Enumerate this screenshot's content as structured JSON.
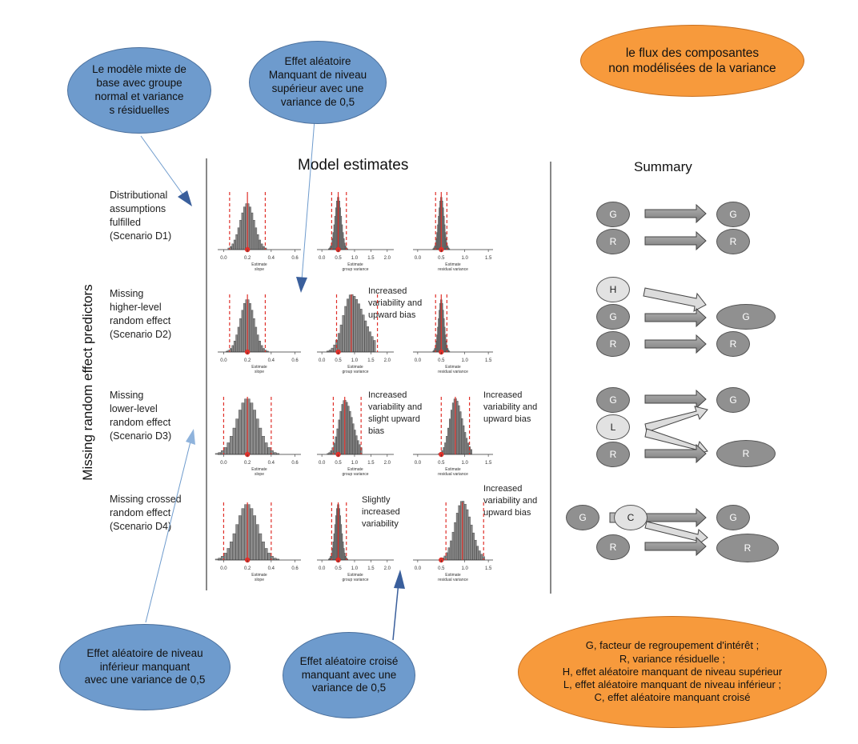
{
  "title": "Model estimates",
  "summary_title": "Summary",
  "side_label": "Missing random effect predictors",
  "rows": [
    {
      "label": "Distributional\nassumptions\nfulfilled\n(Scenario D1)",
      "notes": [
        "",
        "",
        ""
      ]
    },
    {
      "label": "Missing\nhigher-level\nrandom effect\n(Scenario D2)",
      "notes": [
        "",
        "Increased\nvariability and\nupward bias",
        ""
      ]
    },
    {
      "label": "Missing\nlower-level\nrandom effect\n(Scenario D3)",
      "notes": [
        "",
        "Increased\nvariability and\nslight upward\nbias",
        "Increased\nvariability and\nupward bias"
      ]
    },
    {
      "label": "Missing crossed\nrandom effect\n(Scenario D4)",
      "notes": [
        "",
        "Slightly\nincreased\nvariability",
        "Increased\nvariability and\nupward bias"
      ]
    }
  ],
  "axes": [
    {
      "ticks": [
        "0.0",
        "0.2",
        "0.4",
        "0.6"
      ],
      "xlabel": "Estimate\nslope"
    },
    {
      "ticks": [
        "0.0",
        "0.5",
        "1.0",
        "1.5",
        "2.0"
      ],
      "xlabel": "Estimate\ngroup variance"
    },
    {
      "ticks": [
        "0.0",
        "0.5",
        "1.0",
        "1.5"
      ],
      "xlabel": "Estimate\nresidual variance"
    }
  ],
  "callouts": {
    "top_left": "Le modèle mixte de\nbase avec groupe\nnormal et variance\ns résiduelles",
    "top_mid": "Effet aléatoire\nManquant de niveau\nsupérieur avec une\nvariance de 0,5",
    "top_right": "le flux des composantes\nnon modélisées de la variance",
    "bottom_left": "Effet aléatoire de niveau\ninférieur manquant\navec une variance de 0,5",
    "bottom_mid": "Effet aléatoire croisé\nmanquant avec une\nvariance de 0,5",
    "legend": "G, facteur de regroupement d'intérêt ;\nR, variance résiduelle ;\nH, effet aléatoire manquant de niveau supérieur\nL, effet aléatoire manquant de niveau inférieur ;\nC, effet aléatoire manquant croisé"
  },
  "nodes": {
    "G": "G",
    "R": "R",
    "H": "H",
    "L": "L",
    "C": "C"
  },
  "colors": {
    "blue": "#6e9bcd",
    "orange": "#f79a3c",
    "bar": "#8c8c8c",
    "red": "#e0302a"
  }
}
